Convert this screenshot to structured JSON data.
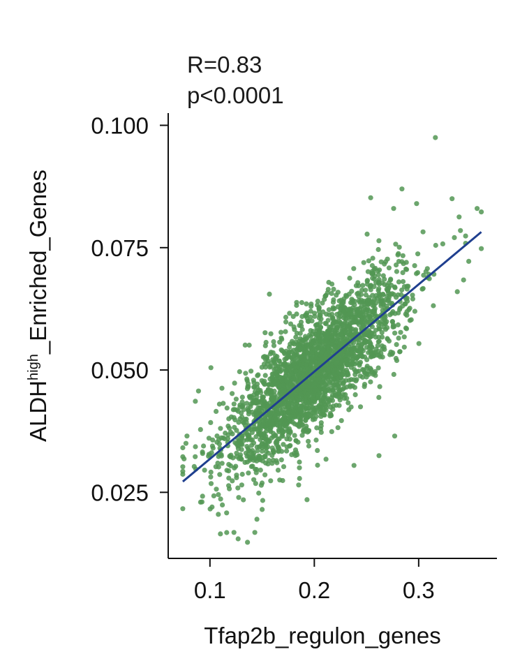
{
  "stats": {
    "r_label": "R=0.83",
    "p_label": "p<0.0001"
  },
  "chart_data": {
    "type": "scatter",
    "title": "",
    "xlabel": "Tfap2b_regulon_genes",
    "ylabel_main": "ALDH",
    "ylabel_sup": "high",
    "ylabel_rest": "_Enriched_Genes",
    "xlim": [
      0.06,
      0.375
    ],
    "ylim": [
      0.0115,
      0.1025
    ],
    "x_ticks": [
      0.1,
      0.2,
      0.3
    ],
    "x_tick_labels": [
      "0.1",
      "0.2",
      "0.3"
    ],
    "y_ticks": [
      0.025,
      0.05,
      0.075,
      0.1
    ],
    "y_tick_labels": [
      "0.025",
      "0.050",
      "0.075",
      "0.100"
    ],
    "regression": {
      "x": [
        0.074,
        0.36
      ],
      "y": [
        0.0272,
        0.0782
      ]
    },
    "point_color": "#529653",
    "line_color": "#1f3f8f",
    "cloud": {
      "n": 2600,
      "x_center": 0.2,
      "x_spread": 0.042,
      "y_spread": 0.0058,
      "slope": 0.178,
      "intercept": 0.014
    },
    "outliers": [
      {
        "x": 0.316,
        "y": 0.0975
      },
      {
        "x": 0.284,
        "y": 0.087
      },
      {
        "x": 0.332,
        "y": 0.085
      },
      {
        "x": 0.356,
        "y": 0.083
      },
      {
        "x": 0.36,
        "y": 0.0823
      },
      {
        "x": 0.298,
        "y": 0.084
      },
      {
        "x": 0.254,
        "y": 0.0852
      },
      {
        "x": 0.276,
        "y": 0.083
      },
      {
        "x": 0.34,
        "y": 0.0785
      },
      {
        "x": 0.36,
        "y": 0.0748
      },
      {
        "x": 0.348,
        "y": 0.0722
      },
      {
        "x": 0.343,
        "y": 0.0684
      },
      {
        "x": 0.337,
        "y": 0.066
      },
      {
        "x": 0.157,
        "y": 0.0655
      },
      {
        "x": 0.183,
        "y": 0.0632
      },
      {
        "x": 0.089,
        "y": 0.0457
      },
      {
        "x": 0.086,
        "y": 0.0436
      },
      {
        "x": 0.078,
        "y": 0.0365
      },
      {
        "x": 0.077,
        "y": 0.035
      },
      {
        "x": 0.091,
        "y": 0.023
      },
      {
        "x": 0.102,
        "y": 0.022
      },
      {
        "x": 0.108,
        "y": 0.0205
      },
      {
        "x": 0.116,
        "y": 0.0208
      },
      {
        "x": 0.123,
        "y": 0.0168
      },
      {
        "x": 0.127,
        "y": 0.0155
      },
      {
        "x": 0.136,
        "y": 0.0148
      },
      {
        "x": 0.143,
        "y": 0.0168
      },
      {
        "x": 0.15,
        "y": 0.0215
      },
      {
        "x": 0.185,
        "y": 0.0265
      },
      {
        "x": 0.193,
        "y": 0.0235
      },
      {
        "x": 0.262,
        "y": 0.0325
      },
      {
        "x": 0.277,
        "y": 0.0365
      },
      {
        "x": 0.238,
        "y": 0.0305
      },
      {
        "x": 0.11,
        "y": 0.0165
      },
      {
        "x": 0.145,
        "y": 0.0195
      }
    ]
  }
}
